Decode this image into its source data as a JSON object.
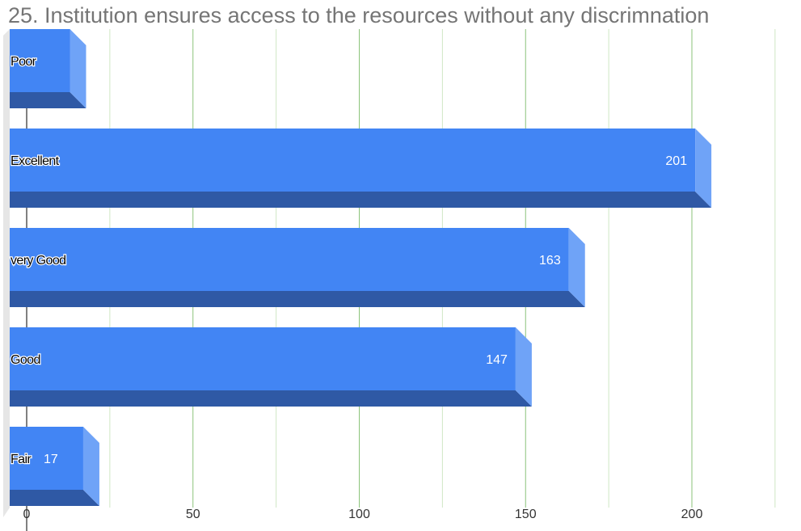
{
  "chart_data": {
    "type": "bar",
    "orientation": "horizontal",
    "title": "25. Institution ensures access to the resources without any discrimnation",
    "categories": [
      "Poor",
      "Excellent",
      "very Good",
      "Good",
      "Fair"
    ],
    "values": [
      13,
      201,
      163,
      147,
      17
    ],
    "data_labels": [
      "",
      "201",
      "163",
      "147",
      "17"
    ],
    "xlim": [
      0,
      225
    ],
    "x_ticks": [
      0,
      50,
      100,
      150,
      200
    ],
    "grid": true,
    "legend": "none",
    "colors": {
      "bar_face": "#4285f4",
      "bar_side": "#6fa3f7",
      "bar_bottom": "#2f59a5",
      "grid_major": "#8bc37a",
      "grid_minor": "#cfe6c4",
      "title": "#757575",
      "tick_label": "#333333"
    }
  }
}
